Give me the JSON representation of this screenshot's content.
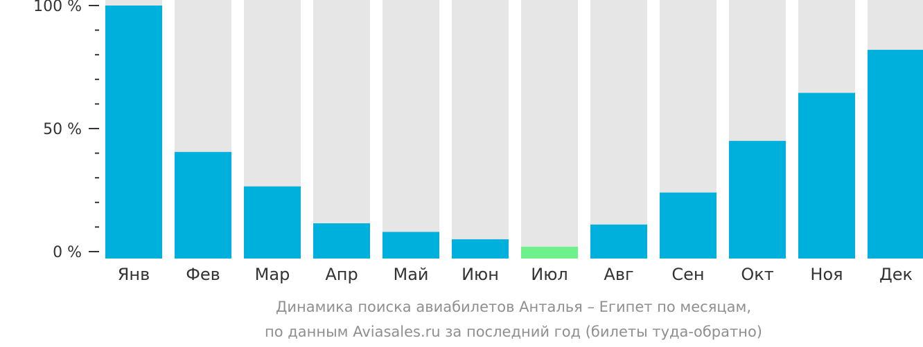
{
  "chart_data": {
    "type": "bar",
    "categories": [
      "Янв",
      "Фев",
      "Мар",
      "Апр",
      "Май",
      "Июн",
      "Июл",
      "Авг",
      "Сен",
      "Окт",
      "Ноя",
      "Дек"
    ],
    "values": [
      100,
      40.5,
      26.5,
      11.5,
      8,
      5,
      2,
      11,
      24,
      45,
      64.5,
      82
    ],
    "highlight_index": 6,
    "ylim": [
      0,
      100
    ],
    "y_ticks": [
      {
        "value": 0,
        "label": "0 %"
      },
      {
        "value": 50,
        "label": "50 %"
      },
      {
        "value": 100,
        "label": "100 %"
      }
    ],
    "y_minor_step": 10,
    "title_line1": "Динамика поиска авиабилетов Анталья – Египет по месяцам,",
    "title_line2": "по данным Aviasales.ru за последний год (билеты туда-обратно)",
    "xlabel": "",
    "ylabel": ""
  },
  "colors": {
    "bar": "#00b0dc",
    "highlight": "#6ef08a",
    "track": "#e6e6e6",
    "axis": "#333333",
    "text": "#333333",
    "caption": "#8f8f8f"
  }
}
